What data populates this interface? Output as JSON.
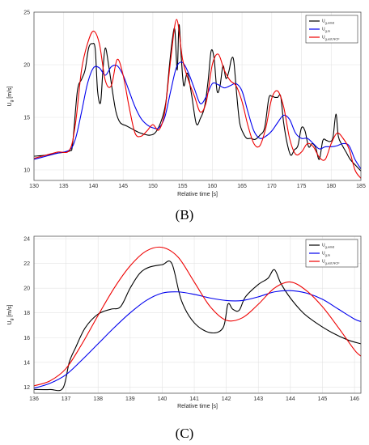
{
  "chart_data": [
    {
      "type": "line",
      "panel_label": "(B)",
      "xlabel": "Relative time [s]",
      "ylabel": "U",
      "ylabel_sub": "g",
      "ylabel_unit": "[m/s]",
      "xlim": [
        130,
        185
      ],
      "ylim": [
        9,
        25
      ],
      "xticks": [
        130,
        135,
        140,
        145,
        150,
        155,
        160,
        165,
        170,
        175,
        180,
        185
      ],
      "yticks": [
        10,
        15,
        20,
        25
      ],
      "grid": true,
      "legend_position": "top-right",
      "series": [
        {
          "name": "U g,wind",
          "legend_main": "U",
          "legend_sub": "g,wind",
          "color": "#000000",
          "x": [
            130,
            132,
            134,
            136,
            136.5,
            137.3,
            138,
            138.6,
            139.2,
            139.8,
            140.3,
            140.7,
            141.2,
            141.6,
            142,
            142.6,
            143.2,
            143.8,
            144.5,
            145.5,
            146.5,
            147.5,
            148.5,
            149.5,
            150.5,
            151.5,
            152.2,
            152.8,
            153.3,
            153.7,
            154.1,
            154.4,
            154.8,
            155.2,
            155.8,
            156.5,
            157.3,
            158,
            158.7,
            159.3,
            159.8,
            160.3,
            160.8,
            161.3,
            161.8,
            162.3,
            162.8,
            163.2,
            163.6,
            164.1,
            164.6,
            165.2,
            165.8,
            166.5,
            167.2,
            168,
            168.8,
            169.5,
            170,
            170.5,
            171,
            171.5,
            172,
            172.6,
            173.2,
            173.8,
            174.4,
            175,
            175.6,
            176.2,
            176.8,
            177.4,
            178,
            178.6,
            179.2,
            179.8,
            180.3,
            180.8,
            181.2,
            181.8,
            182.5,
            183.2,
            184,
            185
          ],
          "y": [
            11.3,
            11.4,
            11.6,
            11.8,
            12.5,
            17.5,
            18.6,
            19.5,
            21.6,
            22.0,
            21.5,
            17.5,
            16.4,
            19.5,
            21.6,
            19.8,
            17.5,
            15.5,
            14.5,
            14.2,
            13.9,
            13.6,
            13.4,
            13.3,
            13.6,
            14.8,
            16.5,
            20.0,
            22.5,
            23.3,
            19.5,
            23.8,
            20.5,
            18.0,
            19.2,
            17.2,
            14.4,
            14.9,
            16.0,
            18.5,
            21.3,
            20.6,
            17.5,
            18.0,
            19.9,
            18.7,
            19.4,
            20.5,
            20.4,
            17.2,
            14.5,
            13.5,
            13.0,
            13.0,
            12.9,
            13.3,
            14.0,
            16.8,
            17.0,
            16.9,
            16.9,
            17.0,
            14.5,
            12.5,
            11.4,
            11.9,
            12.3,
            14.0,
            13.7,
            12.2,
            12.5,
            12.1,
            11.0,
            12.8,
            12.8,
            12.7,
            13.1,
            15.3,
            13.2,
            12.4,
            11.7,
            11.0,
            10.5,
            9.9
          ]
        },
        {
          "name": "U g,lo",
          "legend_main": "U",
          "legend_sub": "g,lo",
          "color": "#0000ee",
          "x": [
            130,
            132,
            134,
            136,
            137,
            138,
            139,
            140,
            141,
            142,
            143,
            144,
            145,
            146,
            147,
            148,
            149,
            150,
            151,
            152,
            153,
            154,
            155,
            156,
            157,
            158,
            159,
            160,
            161,
            162,
            163,
            164,
            165,
            166,
            167,
            168,
            169,
            170,
            171,
            172,
            173,
            174,
            175,
            176,
            177,
            178,
            179,
            180,
            181,
            182,
            183,
            184,
            185
          ],
          "y": [
            11.0,
            11.3,
            11.6,
            11.9,
            13.0,
            15.5,
            18.2,
            19.7,
            19.7,
            19.0,
            19.8,
            19.9,
            19.0,
            17.5,
            16.0,
            14.9,
            14.3,
            14.0,
            14.0,
            15.0,
            17.5,
            19.8,
            20.2,
            19.2,
            17.7,
            16.3,
            17.0,
            18.2,
            18.1,
            17.8,
            18.0,
            18.2,
            17.5,
            15.5,
            13.7,
            13.0,
            13.2,
            13.7,
            14.5,
            15.2,
            14.8,
            13.5,
            13.0,
            13.0,
            12.5,
            12.0,
            12.2,
            12.2,
            12.3,
            12.5,
            12.3,
            11.0,
            10.1
          ]
        },
        {
          "name": "U g,est,NCF",
          "legend_main": "U",
          "legend_sub": "g,est,NCF",
          "color": "#ee0000",
          "x": [
            130,
            132,
            134,
            136,
            137,
            138,
            139,
            140,
            141,
            142,
            143,
            144,
            145,
            146,
            147,
            148,
            149,
            150,
            151,
            152,
            153,
            154,
            155,
            156,
            157,
            158,
            159,
            160,
            161,
            162,
            163,
            164,
            165,
            166,
            167,
            168,
            169,
            170,
            171,
            172,
            173,
            174,
            175,
            176,
            177,
            178,
            179,
            180,
            181,
            182,
            183,
            184,
            185
          ],
          "y": [
            11.1,
            11.4,
            11.7,
            11.9,
            14.5,
            19.5,
            22.0,
            23.2,
            22.0,
            18.5,
            18.0,
            20.5,
            19.0,
            16.0,
            13.5,
            13.2,
            13.7,
            14.3,
            13.8,
            15.5,
            20.5,
            24.3,
            20.5,
            18.5,
            17.0,
            15.5,
            16.5,
            20.0,
            21.0,
            19.5,
            18.5,
            18.0,
            16.5,
            14.2,
            12.5,
            12.3,
            14.0,
            16.8,
            17.5,
            16.0,
            13.0,
            11.5,
            11.7,
            12.5,
            12.2,
            11.2,
            11.0,
            12.5,
            13.5,
            13.0,
            12.0,
            10.0,
            9.2
          ]
        }
      ]
    },
    {
      "type": "line",
      "panel_label": "(C)",
      "xlabel": "Relative time [s]",
      "ylabel": "U",
      "ylabel_sub": "g",
      "ylabel_unit": "[m/s]",
      "xlim": [
        136,
        146.2
      ],
      "ylim": [
        11.5,
        24.2
      ],
      "xticks": [
        136,
        137,
        138,
        139,
        140,
        141,
        142,
        143,
        144,
        145,
        146
      ],
      "yticks": [
        12,
        14,
        16,
        18,
        20,
        22,
        24
      ],
      "grid": true,
      "legend_position": "top-right",
      "series": [
        {
          "name": "U g,wind",
          "legend_main": "U",
          "legend_sub": "g,wind",
          "color": "#000000",
          "x": [
            136,
            136.5,
            136.9,
            137.1,
            137.3,
            137.6,
            138,
            138.4,
            138.7,
            139,
            139.3,
            139.6,
            140,
            140.3,
            140.6,
            141,
            141.5,
            141.9,
            142.05,
            142.2,
            142.4,
            142.6,
            143,
            143.3,
            143.5,
            143.7,
            144,
            144.4,
            144.8,
            145.3,
            145.8,
            146.2
          ],
          "y": [
            11.8,
            11.8,
            11.9,
            14.0,
            15.2,
            16.8,
            17.9,
            18.3,
            18.5,
            20.0,
            21.2,
            21.7,
            21.9,
            22.0,
            19.0,
            17.2,
            16.4,
            16.8,
            18.7,
            18.3,
            18.2,
            19.3,
            20.3,
            20.8,
            21.5,
            20.4,
            19.2,
            18.0,
            17.2,
            16.4,
            15.8,
            15.5
          ]
        },
        {
          "name": "U g,lo",
          "legend_main": "U",
          "legend_sub": "g,lo",
          "color": "#0000ee",
          "x": [
            136,
            136.5,
            137,
            137.5,
            138,
            138.5,
            139,
            139.5,
            140,
            140.5,
            141,
            141.5,
            142,
            142.5,
            143,
            143.5,
            144,
            144.5,
            145,
            145.5,
            146,
            146.2
          ],
          "y": [
            11.9,
            12.3,
            13.0,
            14.2,
            15.5,
            16.8,
            18.0,
            19.0,
            19.6,
            19.7,
            19.5,
            19.2,
            19.0,
            19.0,
            19.3,
            19.7,
            19.8,
            19.6,
            19.1,
            18.3,
            17.5,
            17.3
          ]
        },
        {
          "name": "U g,est,NCF",
          "legend_main": "U",
          "legend_sub": "g,est,NCF",
          "color": "#ee0000",
          "x": [
            136,
            136.5,
            137,
            137.5,
            138,
            138.5,
            139,
            139.5,
            140,
            140.5,
            141,
            141.5,
            142,
            142.5,
            143,
            143.5,
            144,
            144.5,
            145,
            145.5,
            146,
            146.2
          ],
          "y": [
            12.1,
            12.5,
            13.5,
            15.5,
            17.8,
            20.0,
            21.8,
            23.0,
            23.3,
            22.5,
            20.5,
            18.5,
            17.4,
            17.6,
            18.7,
            20.0,
            20.5,
            19.8,
            18.5,
            16.8,
            15.0,
            14.5
          ]
        }
      ]
    }
  ]
}
